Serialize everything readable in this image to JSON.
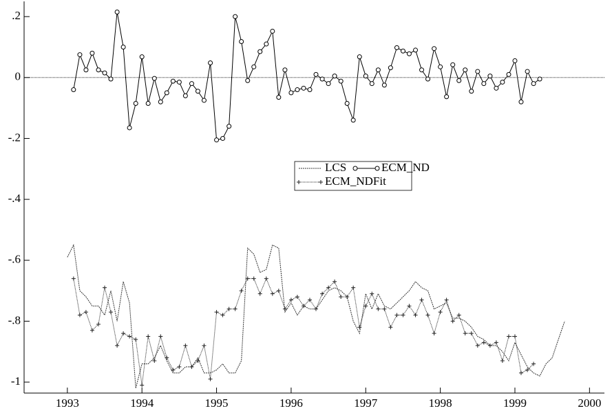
{
  "chart_data": {
    "type": "line",
    "x": [
      1993,
      1993.083,
      1993.167,
      1993.25,
      1993.333,
      1993.417,
      1993.5,
      1993.583,
      1993.667,
      1993.75,
      1993.833,
      1993.917,
      1994,
      1994.083,
      1994.167,
      1994.25,
      1994.333,
      1994.417,
      1994.5,
      1994.583,
      1994.667,
      1994.75,
      1994.833,
      1994.917,
      1995,
      1995.083,
      1995.167,
      1995.25,
      1995.333,
      1995.417,
      1995.5,
      1995.583,
      1995.667,
      1995.75,
      1995.833,
      1995.917,
      1996,
      1996.083,
      1996.167,
      1996.25,
      1996.333,
      1996.417,
      1996.5,
      1996.583,
      1996.667,
      1996.75,
      1996.833,
      1996.917,
      1997,
      1997.083,
      1997.167,
      1997.25,
      1997.333,
      1997.417,
      1997.5,
      1997.583,
      1997.667,
      1997.75,
      1997.833,
      1997.917,
      1998,
      1998.083,
      1998.167,
      1998.25,
      1998.333,
      1998.417,
      1998.5,
      1998.583,
      1998.667,
      1998.75,
      1998.833,
      1998.917,
      1999,
      1999.083,
      1999.167,
      1999.25,
      1999.333,
      1999.417,
      1999.5,
      1999.583,
      1999.667
    ],
    "series": [
      {
        "name": "LCS",
        "color": "#333333",
        "marker": "none",
        "dash": "2 1",
        "values": [
          -0.59,
          -0.55,
          -0.7,
          -0.72,
          -0.75,
          -0.75,
          -0.78,
          -0.7,
          -0.8,
          -0.67,
          -0.74,
          -1.02,
          -0.94,
          -0.94,
          -0.92,
          -0.88,
          -0.93,
          -0.97,
          -0.97,
          -0.95,
          -0.95,
          -0.92,
          -0.97,
          -0.97,
          -0.96,
          -0.94,
          -0.97,
          -0.97,
          -0.93,
          -0.56,
          -0.58,
          -0.64,
          -0.63,
          -0.55,
          -0.56,
          -0.77,
          -0.74,
          -0.78,
          -0.75,
          -0.76,
          -0.76,
          -0.73,
          -0.7,
          -0.69,
          -0.7,
          -0.72,
          -0.8,
          -0.84,
          -0.71,
          -0.76,
          -0.71,
          -0.75,
          -0.76,
          -0.74,
          -0.72,
          -0.7,
          -0.67,
          -0.69,
          -0.7,
          -0.76,
          -0.75,
          -0.74,
          -0.79,
          -0.79,
          -0.8,
          -0.82,
          -0.85,
          -0.86,
          -0.88,
          -0.88,
          -0.9,
          -0.93,
          -0.87,
          -0.91,
          -0.95,
          -0.97,
          -0.98,
          -0.94,
          -0.92,
          -0.86,
          -0.8
        ]
      },
      {
        "name": "ECM_ND",
        "color": "#000000",
        "marker": "circle",
        "dash": "none",
        "values": [
          null,
          -0.04,
          0.075,
          0.025,
          0.08,
          0.025,
          0.015,
          -0.005,
          0.215,
          0.1,
          -0.165,
          -0.085,
          0.068,
          -0.085,
          -0.003,
          -0.08,
          -0.05,
          -0.012,
          -0.015,
          -0.06,
          -0.02,
          -0.045,
          -0.075,
          0.048,
          -0.205,
          -0.2,
          -0.16,
          0.2,
          0.118,
          -0.01,
          0.035,
          0.085,
          0.11,
          0.152,
          -0.065,
          0.025,
          -0.05,
          -0.04,
          -0.035,
          -0.04,
          0.01,
          -0.005,
          -0.02,
          0.005,
          -0.012,
          -0.085,
          -0.14,
          0.068,
          0.005,
          -0.02,
          0.025,
          -0.025,
          0.032,
          0.098,
          0.087,
          0.078,
          0.09,
          0.025,
          -0.005,
          0.095,
          0.035,
          -0.063,
          0.042,
          -0.01,
          0.025,
          -0.045,
          0.02,
          -0.02,
          0.005,
          -0.035,
          -0.015,
          0.01,
          0.055,
          -0.08,
          0.02,
          -0.02,
          -0.005,
          null,
          null,
          null,
          null
        ]
      },
      {
        "name": "ECM_NDFit",
        "color": "#222222",
        "marker": "plus",
        "dash": "1 1",
        "values": [
          null,
          -0.66,
          -0.78,
          -0.77,
          -0.83,
          -0.81,
          -0.69,
          -0.77,
          -0.88,
          -0.84,
          -0.85,
          -0.86,
          -1.01,
          -0.85,
          -0.93,
          -0.85,
          -0.92,
          -0.96,
          -0.95,
          -0.88,
          -0.95,
          -0.93,
          -0.88,
          -0.99,
          -0.77,
          -0.78,
          -0.76,
          -0.76,
          -0.7,
          -0.66,
          -0.66,
          -0.71,
          -0.66,
          -0.71,
          -0.7,
          -0.76,
          -0.73,
          -0.72,
          -0.75,
          -0.73,
          -0.76,
          -0.71,
          -0.69,
          -0.67,
          -0.72,
          -0.72,
          -0.69,
          -0.82,
          -0.75,
          -0.71,
          -0.76,
          -0.76,
          -0.82,
          -0.78,
          -0.78,
          -0.75,
          -0.78,
          -0.73,
          -0.78,
          -0.84,
          -0.77,
          -0.73,
          -0.8,
          -0.78,
          -0.84,
          -0.84,
          -0.88,
          -0.87,
          -0.88,
          -0.87,
          -0.93,
          -0.85,
          -0.85,
          -0.97,
          -0.96,
          -0.94,
          null,
          null,
          null,
          null,
          null
        ]
      }
    ],
    "xlim": [
      1992.42,
      2000.2
    ],
    "ylim": [
      -1.036,
      0.25
    ],
    "xticks": [
      1993,
      1994,
      1995,
      1996,
      1997,
      1998,
      1999,
      2000
    ],
    "yticks": [
      {
        "value": 0.2,
        "label": ".2"
      },
      0,
      {
        "value": -0.2,
        "label": "-.2"
      },
      {
        "value": -0.4,
        "label": "-.4"
      },
      {
        "value": -0.6,
        "label": "-.6"
      },
      {
        "value": -0.8,
        "label": "-.8"
      },
      -1
    ],
    "hline": 0,
    "legend": "center"
  }
}
